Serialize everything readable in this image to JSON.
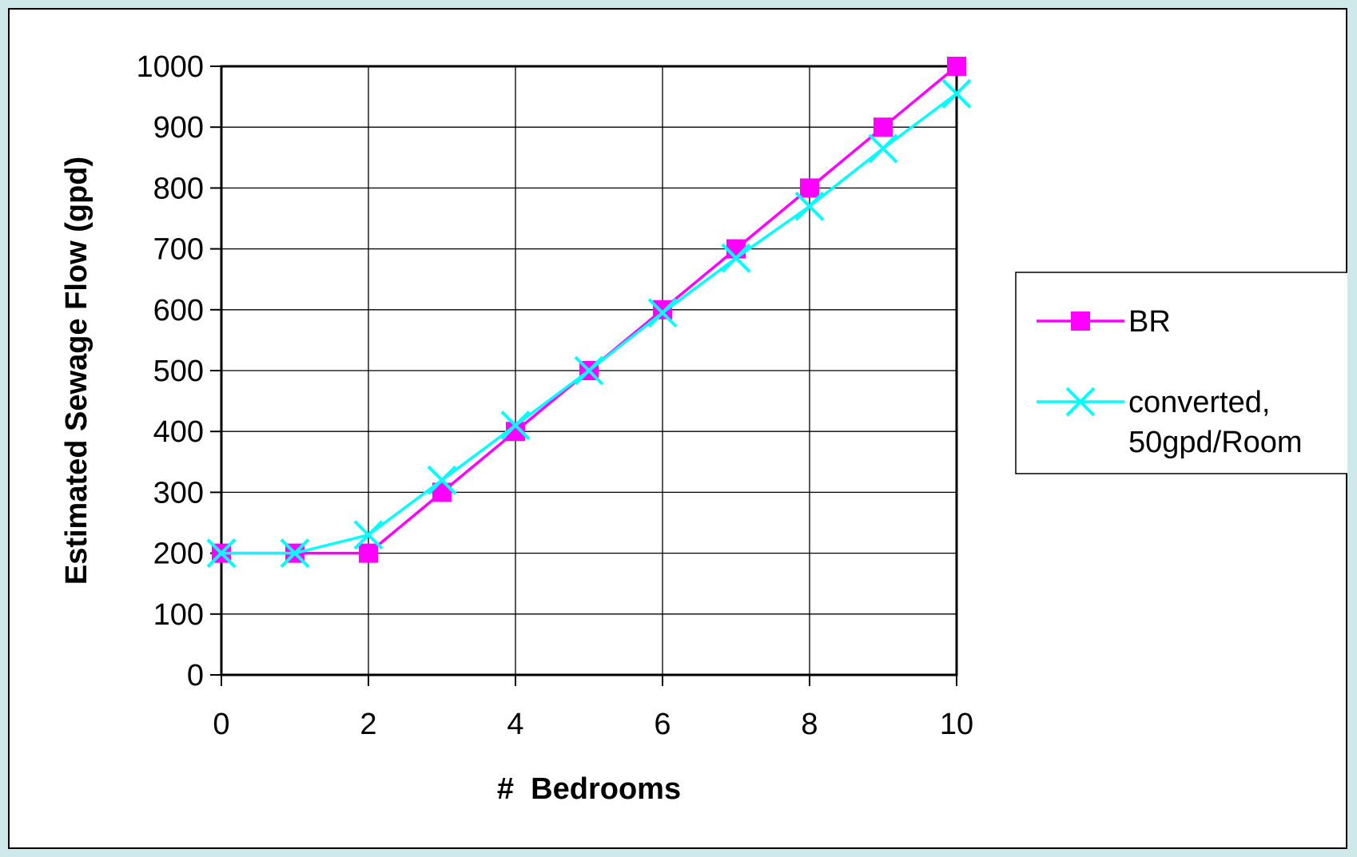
{
  "chart_data": {
    "type": "line",
    "title": "",
    "xlabel": "#  Bedrooms",
    "ylabel": "Estimated Sewage Flow (gpd)",
    "xlim": [
      0,
      10
    ],
    "ylim": [
      0,
      1000
    ],
    "x_ticks": [
      0,
      2,
      4,
      6,
      8,
      10
    ],
    "y_ticks": [
      0,
      100,
      200,
      300,
      400,
      500,
      600,
      700,
      800,
      900,
      1000
    ],
    "x_tick_labels": [
      "0",
      "2",
      "4",
      "6",
      "8",
      "10"
    ],
    "y_tick_labels": [
      "0",
      "100",
      "200",
      "300",
      "400",
      "500",
      "600",
      "700",
      "800",
      "900",
      "1000"
    ],
    "grid": true,
    "legend_position": "right",
    "x": [
      0,
      1,
      2,
      3,
      4,
      5,
      6,
      7,
      8,
      9,
      10
    ],
    "series": [
      {
        "name": "BR",
        "color": "#ff00ff",
        "marker": "square",
        "values": [
          200,
          200,
          200,
          300,
          400,
          500,
          600,
          700,
          800,
          900,
          1000
        ]
      },
      {
        "name": "converted,\n50gpd/Room",
        "color": "#00ffff",
        "marker": "x",
        "values": [
          200,
          200,
          230,
          320,
          410,
          500,
          595,
          685,
          770,
          865,
          955
        ]
      }
    ],
    "legend": {
      "items": [
        {
          "lines": [
            "BR"
          ]
        },
        {
          "lines": [
            "converted,",
            "50gpd/Room"
          ]
        }
      ]
    }
  }
}
